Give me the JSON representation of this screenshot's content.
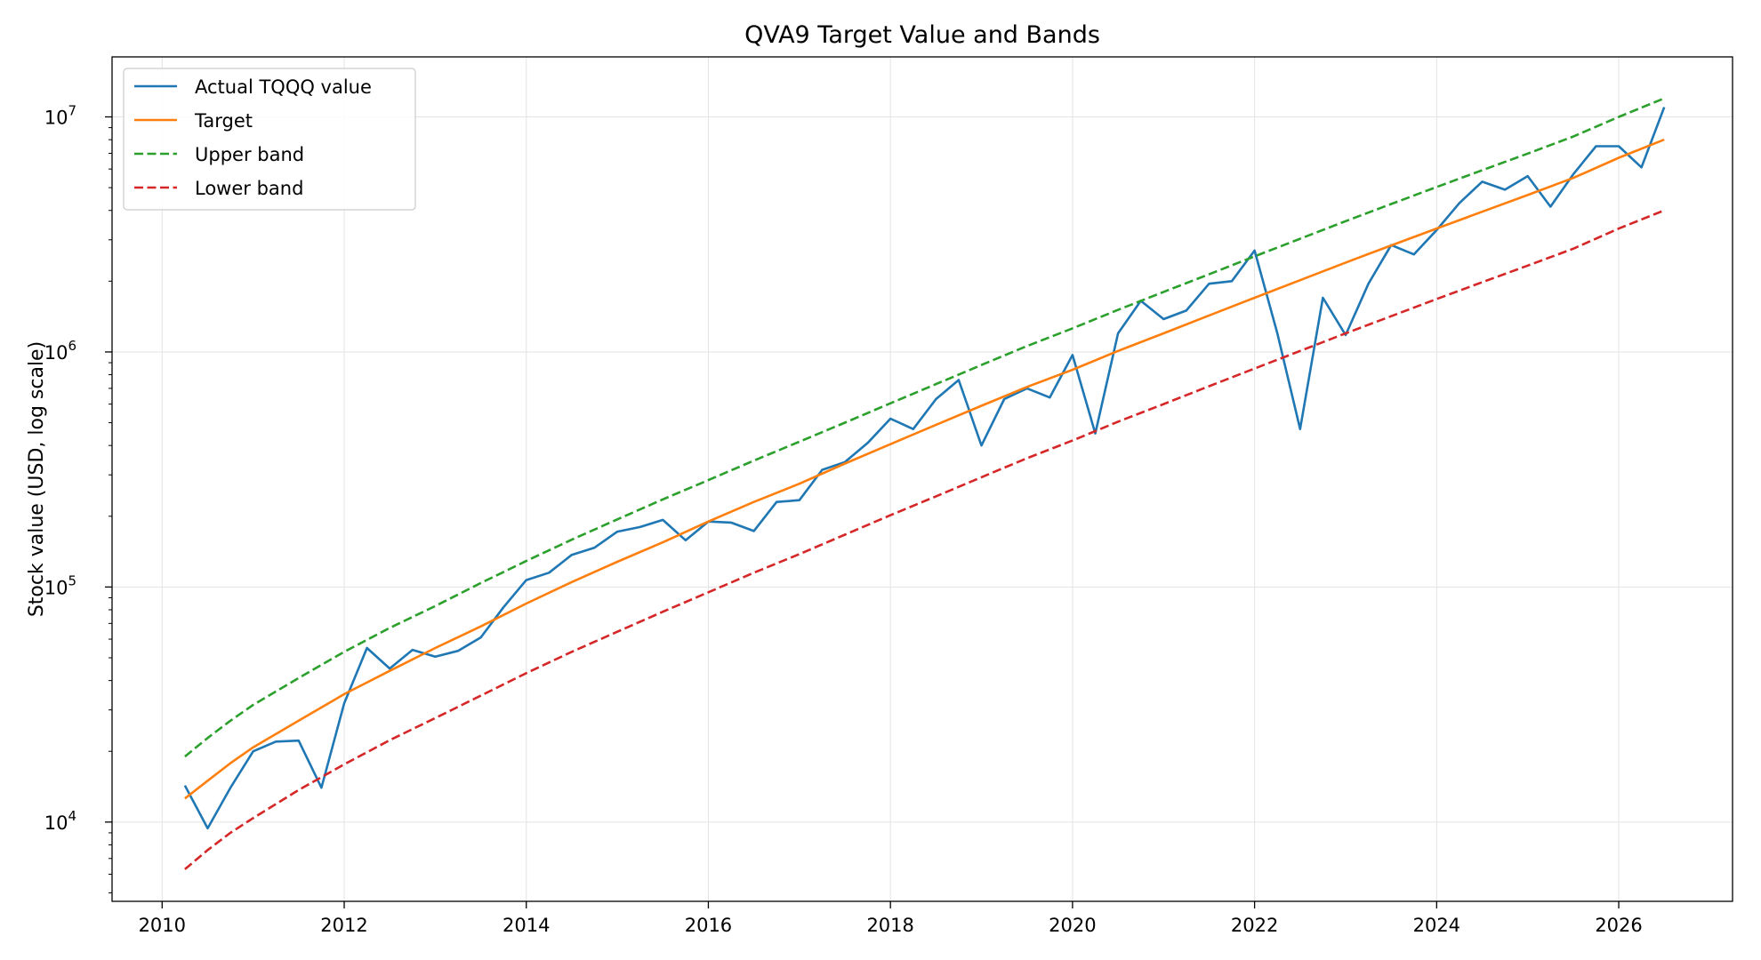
{
  "chart_data": {
    "type": "line",
    "title": "QVA9 Target Value and Bands",
    "xlabel": "",
    "ylabel": "Stock value (USD, log scale)",
    "yscale": "log",
    "xlim": [
      2009.45,
      2027.25
    ],
    "ylim": [
      4600,
      18000000
    ],
    "grid": true,
    "legend_position": "top-left",
    "x_ticks": [
      2010,
      2012,
      2014,
      2016,
      2018,
      2020,
      2022,
      2024,
      2026
    ],
    "y_ticks": [
      {
        "value": 10000,
        "base": "10",
        "exp": "4"
      },
      {
        "value": 100000,
        "base": "10",
        "exp": "5"
      },
      {
        "value": 1000000,
        "base": "10",
        "exp": "6"
      },
      {
        "value": 10000000,
        "base": "10",
        "exp": "7"
      }
    ],
    "series": [
      {
        "name": "Actual TQQQ value",
        "color": "#1f77b4",
        "style": "solid",
        "points": [
          [
            2010.25,
            14300
          ],
          [
            2010.5,
            9400
          ],
          [
            2010.75,
            14000
          ],
          [
            2011.0,
            20000
          ],
          [
            2011.25,
            22000
          ],
          [
            2011.5,
            22200
          ],
          [
            2011.75,
            14000
          ],
          [
            2012.0,
            32000
          ],
          [
            2012.25,
            55000
          ],
          [
            2012.5,
            45000
          ],
          [
            2012.75,
            54000
          ],
          [
            2013.0,
            50500
          ],
          [
            2013.25,
            53500
          ],
          [
            2013.5,
            61000
          ],
          [
            2013.75,
            82000
          ],
          [
            2014.0,
            107000
          ],
          [
            2014.25,
            115000
          ],
          [
            2014.5,
            137000
          ],
          [
            2014.75,
            147000
          ],
          [
            2015.0,
            172000
          ],
          [
            2015.25,
            180000
          ],
          [
            2015.5,
            193000
          ],
          [
            2015.75,
            158000
          ],
          [
            2016.0,
            190000
          ],
          [
            2016.25,
            188000
          ],
          [
            2016.5,
            173000
          ],
          [
            2016.75,
            230000
          ],
          [
            2017.0,
            234000
          ],
          [
            2017.25,
            315000
          ],
          [
            2017.5,
            340000
          ],
          [
            2017.75,
            410000
          ],
          [
            2018.0,
            520000
          ],
          [
            2018.25,
            470000
          ],
          [
            2018.5,
            630000
          ],
          [
            2018.75,
            760000
          ],
          [
            2019.0,
            400000
          ],
          [
            2019.25,
            630000
          ],
          [
            2019.5,
            700000
          ],
          [
            2019.75,
            640000
          ],
          [
            2020.0,
            970000
          ],
          [
            2020.25,
            450000
          ],
          [
            2020.5,
            1200000
          ],
          [
            2020.75,
            1650000
          ],
          [
            2021.0,
            1380000
          ],
          [
            2021.25,
            1500000
          ],
          [
            2021.5,
            1950000
          ],
          [
            2021.75,
            2000000
          ],
          [
            2022.0,
            2700000
          ],
          [
            2022.25,
            1200000
          ],
          [
            2022.5,
            470000
          ],
          [
            2022.75,
            1700000
          ],
          [
            2023.0,
            1180000
          ],
          [
            2023.25,
            1950000
          ],
          [
            2023.5,
            2850000
          ],
          [
            2023.75,
            2600000
          ],
          [
            2024.0,
            3300000
          ],
          [
            2024.25,
            4300000
          ],
          [
            2024.5,
            5300000
          ],
          [
            2024.75,
            4900000
          ],
          [
            2025.0,
            5600000
          ],
          [
            2025.25,
            4150000
          ],
          [
            2025.5,
            5700000
          ],
          [
            2025.75,
            7500000
          ],
          [
            2026.0,
            7500000
          ],
          [
            2026.25,
            6100000
          ],
          [
            2026.5,
            11000000
          ]
        ]
      },
      {
        "name": "Target",
        "color": "#ff7f0e",
        "style": "solid",
        "points": [
          [
            2010.25,
            12600
          ],
          [
            2010.5,
            15000
          ],
          [
            2010.75,
            17800
          ],
          [
            2011.0,
            20800
          ],
          [
            2011.5,
            27000
          ],
          [
            2012.0,
            35000
          ],
          [
            2012.5,
            44000
          ],
          [
            2013.0,
            55000
          ],
          [
            2013.5,
            68000
          ],
          [
            2014.0,
            85000
          ],
          [
            2014.5,
            105000
          ],
          [
            2015.0,
            128000
          ],
          [
            2015.5,
            155000
          ],
          [
            2016.0,
            190000
          ],
          [
            2016.5,
            230000
          ],
          [
            2017.0,
            275000
          ],
          [
            2017.5,
            335000
          ],
          [
            2018.0,
            405000
          ],
          [
            2018.5,
            490000
          ],
          [
            2019.0,
            590000
          ],
          [
            2019.5,
            710000
          ],
          [
            2020.0,
            840000
          ],
          [
            2020.5,
            1010000
          ],
          [
            2021.0,
            1200000
          ],
          [
            2021.5,
            1430000
          ],
          [
            2022.0,
            1700000
          ],
          [
            2022.5,
            2020000
          ],
          [
            2023.0,
            2400000
          ],
          [
            2023.5,
            2840000
          ],
          [
            2024.0,
            3350000
          ],
          [
            2024.5,
            3950000
          ],
          [
            2025.0,
            4650000
          ],
          [
            2025.5,
            5500000
          ],
          [
            2026.0,
            6700000
          ],
          [
            2026.5,
            8000000
          ]
        ]
      },
      {
        "name": "Upper band",
        "color": "#2ca02c",
        "style": "dashed",
        "points": [
          [
            2010.25,
            19000
          ],
          [
            2010.5,
            22800
          ],
          [
            2010.75,
            27000
          ],
          [
            2011.0,
            31500
          ],
          [
            2011.5,
            41000
          ],
          [
            2012.0,
            53000
          ],
          [
            2012.5,
            67000
          ],
          [
            2013.0,
            83000
          ],
          [
            2013.5,
            104000
          ],
          [
            2014.0,
            129000
          ],
          [
            2014.5,
            159000
          ],
          [
            2015.0,
            194000
          ],
          [
            2015.5,
            236000
          ],
          [
            2016.0,
            285000
          ],
          [
            2016.5,
            345000
          ],
          [
            2017.0,
            415000
          ],
          [
            2017.5,
            500000
          ],
          [
            2018.0,
            605000
          ],
          [
            2018.5,
            730000
          ],
          [
            2019.0,
            880000
          ],
          [
            2019.5,
            1060000
          ],
          [
            2020.0,
            1260000
          ],
          [
            2020.5,
            1510000
          ],
          [
            2021.0,
            1800000
          ],
          [
            2021.5,
            2140000
          ],
          [
            2022.0,
            2550000
          ],
          [
            2022.5,
            3030000
          ],
          [
            2023.0,
            3600000
          ],
          [
            2023.5,
            4260000
          ],
          [
            2024.0,
            5030000
          ],
          [
            2024.5,
            5930000
          ],
          [
            2025.0,
            6980000
          ],
          [
            2025.5,
            8250000
          ],
          [
            2026.0,
            10000000
          ],
          [
            2026.5,
            12000000
          ]
        ]
      },
      {
        "name": "Lower band",
        "color": "#d62728",
        "style": "dashed",
        "points": [
          [
            2010.25,
            6300
          ],
          [
            2010.5,
            7600
          ],
          [
            2010.75,
            9000
          ],
          [
            2011.0,
            10400
          ],
          [
            2011.5,
            13700
          ],
          [
            2012.0,
            17600
          ],
          [
            2012.5,
            22300
          ],
          [
            2013.0,
            27700
          ],
          [
            2013.5,
            34500
          ],
          [
            2014.0,
            43000
          ],
          [
            2014.5,
            53000
          ],
          [
            2015.0,
            64500
          ],
          [
            2015.5,
            78500
          ],
          [
            2016.0,
            95000
          ],
          [
            2016.5,
            115000
          ],
          [
            2017.0,
            138000
          ],
          [
            2017.5,
            167000
          ],
          [
            2018.0,
            202000
          ],
          [
            2018.5,
            243000
          ],
          [
            2019.0,
            293000
          ],
          [
            2019.5,
            353000
          ],
          [
            2020.0,
            420000
          ],
          [
            2020.5,
            505000
          ],
          [
            2021.0,
            600000
          ],
          [
            2021.5,
            715000
          ],
          [
            2022.0,
            850000
          ],
          [
            2022.5,
            1010000
          ],
          [
            2023.0,
            1200000
          ],
          [
            2023.5,
            1420000
          ],
          [
            2024.0,
            1680000
          ],
          [
            2024.5,
            1980000
          ],
          [
            2025.0,
            2330000
          ],
          [
            2025.5,
            2750000
          ],
          [
            2026.0,
            3350000
          ],
          [
            2026.5,
            4000000
          ]
        ]
      }
    ]
  }
}
